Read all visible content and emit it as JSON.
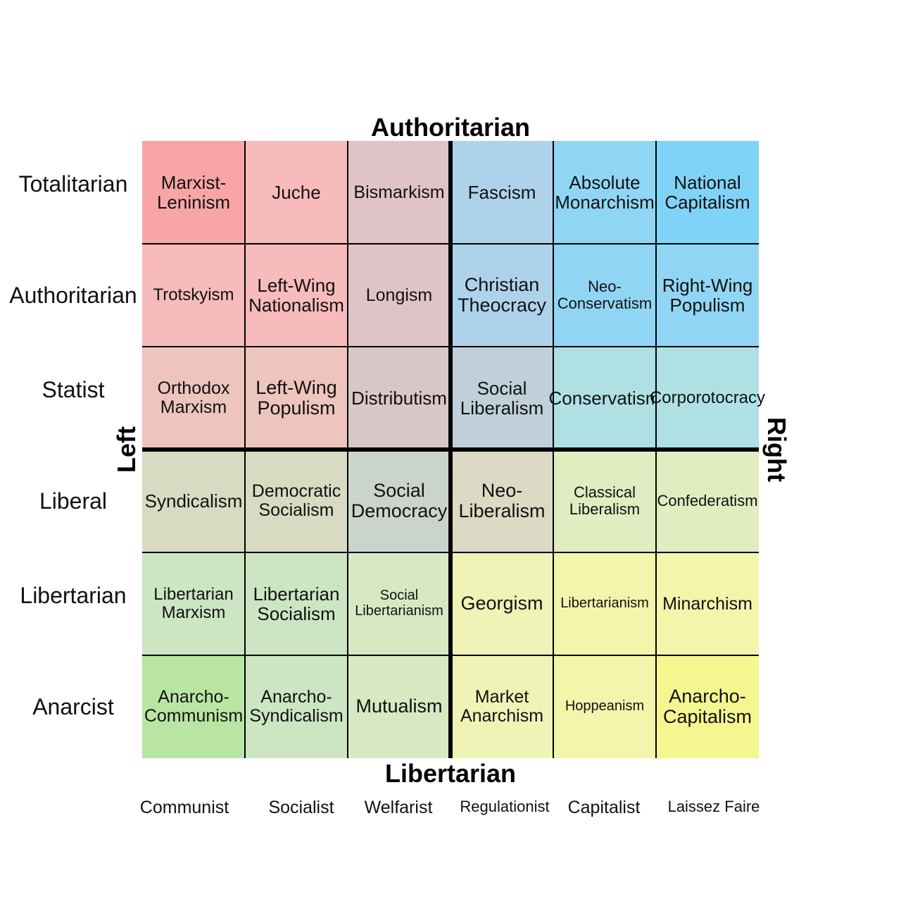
{
  "axes": {
    "top": "Authoritarian",
    "bottom": "Libertarian",
    "left": "Left",
    "right": "Right"
  },
  "rows": [
    "Totalitarian",
    "Authoritarian",
    "Statist",
    "Liberal",
    "Libertarian",
    "Anarcist"
  ],
  "columns": [
    "Communist",
    "Socialist",
    "Welfarist",
    "Regulationist",
    "Capitalist",
    "Laissez Faire"
  ],
  "cells": [
    [
      {
        "text": "Marxist-\nLeninism",
        "color": "#f8a5a5"
      },
      {
        "text": "Juche",
        "color": "#f8bbbb"
      },
      {
        "text": "Bismarkism",
        "color": "#e0c3c9"
      },
      {
        "text": "Fascism",
        "color": "#aed2ea"
      },
      {
        "text": "Absolute\nMonarchism",
        "color": "#90d6f4"
      },
      {
        "text": "National\nCapitalism",
        "color": "#7fd3f7"
      }
    ],
    [
      {
        "text": "Trotskyism",
        "color": "#f8bbbb"
      },
      {
        "text": "Left-Wing\nNationalism",
        "color": "#f8bbbb"
      },
      {
        "text": "Longism",
        "color": "#e0c3c9"
      },
      {
        "text": "Christian\nTheocracy",
        "color": "#aed2ea"
      },
      {
        "text": "Neo-\nConservatism",
        "color": "#90d6f4"
      },
      {
        "text": "Right-Wing\nPopulism",
        "color": "#90d6f4"
      }
    ],
    [
      {
        "text": "Orthodox\nMarxism",
        "color": "#edc5bd"
      },
      {
        "text": "Left-Wing\nPopulism",
        "color": "#edc5bd"
      },
      {
        "text": "Distributism",
        "color": "#d9c7c8"
      },
      {
        "text": "Social\nLiberalism",
        "color": "#c0d0d8"
      },
      {
        "text": "Conservatism",
        "color": "#aee0e4"
      },
      {
        "text": "Corporotocracy",
        "color": "#aee0e4"
      }
    ],
    [
      {
        "text": "Syndicalism",
        "color": "#d8dbc2"
      },
      {
        "text": "Democratic\nSocialism",
        "color": "#d8dbc2"
      },
      {
        "text": "Social\nDemocracy",
        "color": "#cbd4cc"
      },
      {
        "text": "Neo-\nLiberalism",
        "color": "#dcd9c4"
      },
      {
        "text": "Classical\nLiberalism",
        "color": "#e1ecc1"
      },
      {
        "text": "Confederatism",
        "color": "#e1ecc1"
      }
    ],
    [
      {
        "text": "Libertarian\nMarxism",
        "color": "#cce5c3"
      },
      {
        "text": "Libertarian\nSocialism",
        "color": "#cce5c3"
      },
      {
        "text": "Social\nLibertarianism",
        "color": "#d7e9c2"
      },
      {
        "text": "Georgism",
        "color": "#eef3b6"
      },
      {
        "text": "Libertarianism",
        "color": "#f3f5ab"
      },
      {
        "text": "Minarchism",
        "color": "#f3f5ab"
      }
    ],
    [
      {
        "text": "Anarcho-\nCommunism",
        "color": "#b8e6a2"
      },
      {
        "text": "Anarcho-\nSyndicalism",
        "color": "#cce5c3"
      },
      {
        "text": "Mutualism",
        "color": "#d7e9c2"
      },
      {
        "text": "Market\nAnarchism",
        "color": "#eef3b6"
      },
      {
        "text": "Hoppeanism",
        "color": "#f3f5ab"
      },
      {
        "text": "Anarcho-\nCapitalism",
        "color": "#f5f68f"
      }
    ]
  ]
}
